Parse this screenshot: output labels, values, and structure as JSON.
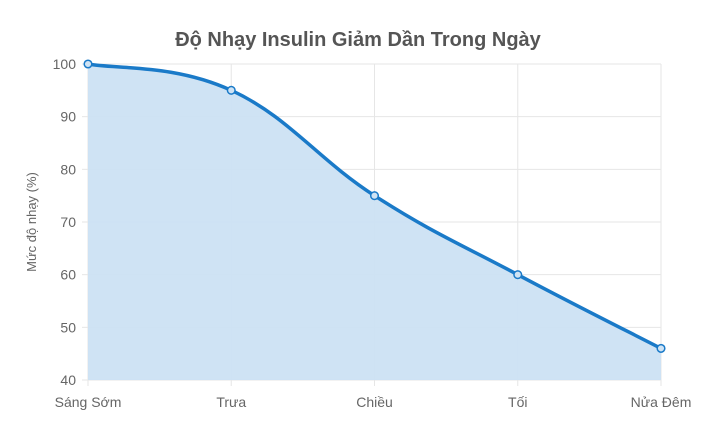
{
  "chart_data": {
    "type": "area",
    "title": "Độ Nhạy Insulin Giảm Dần Trong Ngày",
    "xlabel": "",
    "ylabel": "Mức độ nhạy (%)",
    "categories": [
      "Sáng Sớm",
      "Trưa",
      "Chiều",
      "Tối",
      "Nửa Đêm"
    ],
    "series": [
      {
        "values": [
          100,
          95,
          75,
          60,
          46
        ]
      }
    ],
    "ylim": [
      40,
      100
    ],
    "yticks": [
      40,
      50,
      60,
      70,
      80,
      90,
      100
    ],
    "grid": true,
    "legend": "none",
    "colors": {
      "line": "#1a7ac8",
      "fill": "#cce2f3",
      "grid": "#e6e6e6",
      "point_fill": "#cfe3f4"
    }
  }
}
